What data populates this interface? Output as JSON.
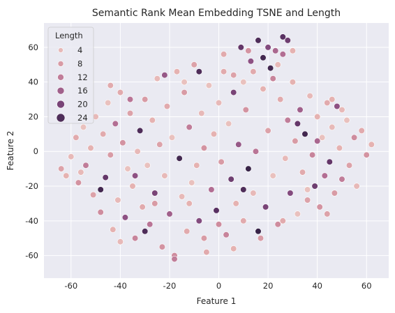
{
  "chart_data": {
    "type": "scatter",
    "title": "Semantic Rank Mean Embedding TSNE and Length",
    "xlabel": "Feature 1",
    "ylabel": "Feature 2",
    "xlim": [
      -71,
      69
    ],
    "ylim": [
      -73,
      74
    ],
    "x_ticks": [
      -60,
      -40,
      -20,
      0,
      20,
      40,
      60
    ],
    "y_ticks": [
      -60,
      -40,
      -20,
      0,
      20,
      40,
      60
    ],
    "grid": true,
    "legend": {
      "title": "Length",
      "placement": "upper-left",
      "entries": [
        {
          "label": "4",
          "value": 4
        },
        {
          "label": "8",
          "value": 8
        },
        {
          "label": "12",
          "value": 12
        },
        {
          "label": "16",
          "value": 16
        },
        {
          "label": "20",
          "value": 20
        },
        {
          "label": "24",
          "value": 24
        }
      ]
    },
    "color_scale": {
      "stops": [
        "#edd1cb",
        "#e4afaf",
        "#d08e9f",
        "#b26e93",
        "#8a4f82",
        "#5d3365",
        "#2d1e3e"
      ],
      "domain": [
        1,
        27
      ]
    },
    "points": [
      {
        "x": -62,
        "y": -14,
        "len": 5
      },
      {
        "x": -60,
        "y": -3,
        "len": 4
      },
      {
        "x": -58,
        "y": 8,
        "len": 6
      },
      {
        "x": -57,
        "y": -18,
        "len": 9
      },
      {
        "x": -55,
        "y": 14,
        "len": 3
      },
      {
        "x": -54,
        "y": -8,
        "len": 12
      },
      {
        "x": -52,
        "y": 2,
        "len": 5
      },
      {
        "x": -51,
        "y": -25,
        "len": 7
      },
      {
        "x": -50,
        "y": 20,
        "len": 4
      },
      {
        "x": -48,
        "y": -35,
        "len": 10
      },
      {
        "x": -47,
        "y": 10,
        "len": 6
      },
      {
        "x": -46,
        "y": -15,
        "len": 22
      },
      {
        "x": -45,
        "y": 28,
        "len": 3
      },
      {
        "x": -44,
        "y": -2,
        "len": 8
      },
      {
        "x": -43,
        "y": -45,
        "len": 5
      },
      {
        "x": -42,
        "y": 16,
        "len": 14
      },
      {
        "x": -41,
        "y": -28,
        "len": 4
      },
      {
        "x": -40,
        "y": 34,
        "len": 6
      },
      {
        "x": -39,
        "y": 5,
        "len": 9
      },
      {
        "x": -38,
        "y": -38,
        "len": 18
      },
      {
        "x": -37,
        "y": -10,
        "len": 3
      },
      {
        "x": -36,
        "y": 22,
        "len": 7
      },
      {
        "x": -35,
        "y": -20,
        "len": 5
      },
      {
        "x": -34,
        "y": -50,
        "len": 11
      },
      {
        "x": -33,
        "y": 0,
        "len": 4
      },
      {
        "x": -32,
        "y": 12,
        "len": 24
      },
      {
        "x": -31,
        "y": -32,
        "len": 6
      },
      {
        "x": -30,
        "y": 30,
        "len": 8
      },
      {
        "x": -29,
        "y": -8,
        "len": 3
      },
      {
        "x": -28,
        "y": -42,
        "len": 13
      },
      {
        "x": -27,
        "y": 18,
        "len": 5
      },
      {
        "x": -26,
        "y": -24,
        "len": 20
      },
      {
        "x": -25,
        "y": 42,
        "len": 4
      },
      {
        "x": -24,
        "y": 4,
        "len": 7
      },
      {
        "x": -23,
        "y": -55,
        "len": 9
      },
      {
        "x": -22,
        "y": -14,
        "len": 4
      },
      {
        "x": -21,
        "y": 26,
        "len": 6
      },
      {
        "x": -20,
        "y": -36,
        "len": 16
      },
      {
        "x": -19,
        "y": 8,
        "len": 3
      },
      {
        "x": -18,
        "y": -60,
        "len": 10
      },
      {
        "x": -17,
        "y": 46,
        "len": 5
      },
      {
        "x": -16,
        "y": -4,
        "len": 25
      },
      {
        "x": -15,
        "y": -26,
        "len": 4
      },
      {
        "x": -14,
        "y": 34,
        "len": 8
      },
      {
        "x": -13,
        "y": -46,
        "len": 6
      },
      {
        "x": -12,
        "y": 14,
        "len": 12
      },
      {
        "x": -11,
        "y": -18,
        "len": 3
      },
      {
        "x": -10,
        "y": 50,
        "len": 7
      },
      {
        "x": -9,
        "y": -8,
        "len": 5
      },
      {
        "x": -8,
        "y": -40,
        "len": 19
      },
      {
        "x": -7,
        "y": 22,
        "len": 4
      },
      {
        "x": -6,
        "y": 2,
        "len": 9
      },
      {
        "x": -5,
        "y": -58,
        "len": 6
      },
      {
        "x": -4,
        "y": 38,
        "len": 3
      },
      {
        "x": -3,
        "y": -22,
        "len": 14
      },
      {
        "x": -2,
        "y": 10,
        "len": 5
      },
      {
        "x": -1,
        "y": -34,
        "len": 23
      },
      {
        "x": 0,
        "y": 28,
        "len": 4
      },
      {
        "x": 1,
        "y": -6,
        "len": 8
      },
      {
        "x": 2,
        "y": 56,
        "len": 6
      },
      {
        "x": 3,
        "y": -48,
        "len": 11
      },
      {
        "x": 4,
        "y": 16,
        "len": 3
      },
      {
        "x": 5,
        "y": -16,
        "len": 21
      },
      {
        "x": 6,
        "y": 44,
        "len": 7
      },
      {
        "x": 7,
        "y": -30,
        "len": 5
      },
      {
        "x": 8,
        "y": 4,
        "len": 17
      },
      {
        "x": 9,
        "y": 60,
        "len": 22
      },
      {
        "x": 10,
        "y": -40,
        "len": 6
      },
      {
        "x": 11,
        "y": 24,
        "len": 9
      },
      {
        "x": 12,
        "y": -10,
        "len": 26
      },
      {
        "x": 13,
        "y": 52,
        "len": 18
      },
      {
        "x": 14,
        "y": -24,
        "len": 4
      },
      {
        "x": 15,
        "y": 0,
        "len": 13
      },
      {
        "x": 16,
        "y": 64,
        "len": 24
      },
      {
        "x": 17,
        "y": -50,
        "len": 8
      },
      {
        "x": 18,
        "y": 36,
        "len": 5
      },
      {
        "x": 19,
        "y": -32,
        "len": 20
      },
      {
        "x": 20,
        "y": 12,
        "len": 7
      },
      {
        "x": 21,
        "y": 48,
        "len": 25
      },
      {
        "x": 22,
        "y": -14,
        "len": 3
      },
      {
        "x": 23,
        "y": 58,
        "len": 15
      },
      {
        "x": 24,
        "y": -42,
        "len": 10
      },
      {
        "x": 25,
        "y": 30,
        "len": 6
      },
      {
        "x": 26,
        "y": 66,
        "len": 23
      },
      {
        "x": 27,
        "y": -4,
        "len": 4
      },
      {
        "x": 28,
        "y": 18,
        "len": 12
      },
      {
        "x": 29,
        "y": -24,
        "len": 19
      },
      {
        "x": 30,
        "y": 40,
        "len": 5
      },
      {
        "x": 31,
        "y": 6,
        "len": 8
      },
      {
        "x": 32,
        "y": -36,
        "len": 3
      },
      {
        "x": 33,
        "y": 24,
        "len": 16
      },
      {
        "x": 34,
        "y": -12,
        "len": 6
      },
      {
        "x": 35,
        "y": 10,
        "len": 25
      },
      {
        "x": 36,
        "y": -28,
        "len": 7
      },
      {
        "x": 37,
        "y": 32,
        "len": 4
      },
      {
        "x": 38,
        "y": -2,
        "len": 11
      },
      {
        "x": 39,
        "y": -20,
        "len": 21
      },
      {
        "x": 40,
        "y": 20,
        "len": 5
      },
      {
        "x": 41,
        "y": -32,
        "len": 9
      },
      {
        "x": 42,
        "y": 8,
        "len": 3
      },
      {
        "x": 43,
        "y": -14,
        "len": 14
      },
      {
        "x": 44,
        "y": 28,
        "len": 6
      },
      {
        "x": 45,
        "y": -6,
        "len": 22
      },
      {
        "x": 46,
        "y": 14,
        "len": 4
      },
      {
        "x": 47,
        "y": -24,
        "len": 8
      },
      {
        "x": 48,
        "y": 26,
        "len": 18
      },
      {
        "x": 49,
        "y": 2,
        "len": 5
      },
      {
        "x": 50,
        "y": -16,
        "len": 12
      },
      {
        "x": 52,
        "y": 18,
        "len": 3
      },
      {
        "x": 53,
        "y": -8,
        "len": 7
      },
      {
        "x": 55,
        "y": 8,
        "len": 10
      },
      {
        "x": 56,
        "y": -20,
        "len": 4
      },
      {
        "x": 58,
        "y": 12,
        "len": 6
      },
      {
        "x": 60,
        "y": -2,
        "len": 9
      },
      {
        "x": 62,
        "y": 4,
        "len": 5
      },
      {
        "x": -64,
        "y": -10,
        "len": 7
      },
      {
        "x": -40,
        "y": -52,
        "len": 4
      },
      {
        "x": -30,
        "y": -46,
        "len": 24
      },
      {
        "x": -18,
        "y": -62,
        "len": 12
      },
      {
        "x": -6,
        "y": -50,
        "len": 8
      },
      {
        "x": 6,
        "y": -56,
        "len": 5
      },
      {
        "x": 16,
        "y": -46,
        "len": 26
      },
      {
        "x": 26,
        "y": -40,
        "len": 6
      },
      {
        "x": 20,
        "y": 60,
        "len": 19
      },
      {
        "x": 24,
        "y": 50,
        "len": 4
      },
      {
        "x": 12,
        "y": 58,
        "len": 9
      },
      {
        "x": 28,
        "y": 64,
        "len": 21
      },
      {
        "x": 18,
        "y": 54,
        "len": 25
      },
      {
        "x": 14,
        "y": 46,
        "len": 6
      },
      {
        "x": 22,
        "y": 42,
        "len": 11
      },
      {
        "x": 10,
        "y": 40,
        "len": 3
      },
      {
        "x": 26,
        "y": 56,
        "len": 14
      },
      {
        "x": 30,
        "y": 58,
        "len": 5
      },
      {
        "x": -36,
        "y": 30,
        "len": 13
      },
      {
        "x": -44,
        "y": 38,
        "len": 6
      },
      {
        "x": -22,
        "y": 44,
        "len": 17
      },
      {
        "x": -14,
        "y": 40,
        "len": 3
      },
      {
        "x": -8,
        "y": 46,
        "len": 24
      },
      {
        "x": 2,
        "y": 46,
        "len": 6
      },
      {
        "x": 6,
        "y": 34,
        "len": 20
      },
      {
        "x": -26,
        "y": -30,
        "len": 8
      },
      {
        "x": -48,
        "y": -22,
        "len": 25
      },
      {
        "x": -56,
        "y": -12,
        "len": 4
      },
      {
        "x": -34,
        "y": -14,
        "len": 18
      },
      {
        "x": -12,
        "y": -30,
        "len": 5
      },
      {
        "x": 0,
        "y": -42,
        "len": 10
      },
      {
        "x": 10,
        "y": -22,
        "len": 24
      },
      {
        "x": 36,
        "y": -22,
        "len": 3
      },
      {
        "x": 44,
        "y": -36,
        "len": 7
      },
      {
        "x": 50,
        "y": 24,
        "len": 4
      },
      {
        "x": 32,
        "y": 16,
        "len": 22
      },
      {
        "x": 40,
        "y": 6,
        "len": 15
      },
      {
        "x": 46,
        "y": 30,
        "len": 5
      }
    ]
  }
}
